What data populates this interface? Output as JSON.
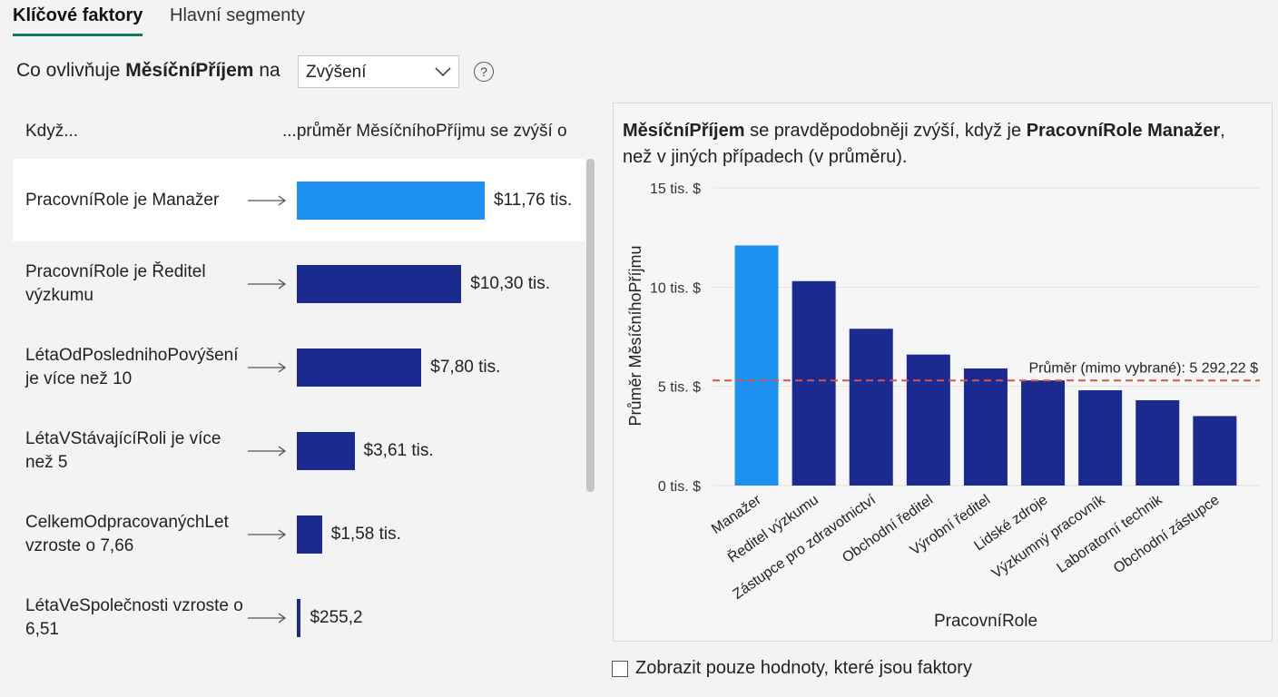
{
  "tabs": [
    "Klíčové faktory",
    "Hlavní segmenty"
  ],
  "question": {
    "prefix": "Co ovlivňuje",
    "field": "MěsíčníPříjem",
    "connector": "na",
    "dropdown": "Zvýšení",
    "help": "?"
  },
  "influencers": {
    "header_left": "Když...",
    "header_right": "...průměr MěsíčníhoPříjmu se zvýší o",
    "selected_index": 0,
    "color": "#1b2a8f",
    "selected_color": "#1e90f0",
    "items": [
      {
        "label": "PracovníRole je Manažer",
        "value": 11760,
        "value_label": "$11,76 tis."
      },
      {
        "label": "PracovníRole je Ředitel výzkumu",
        "value": 10300,
        "value_label": "$10,30 tis."
      },
      {
        "label": "LétaOdPoslednihoPovýšení je více než 10",
        "value": 7800,
        "value_label": "$7,80 tis."
      },
      {
        "label": "LétaVStávajícíRoli je více než 5",
        "value": 3610,
        "value_label": "$3,61 tis."
      },
      {
        "label": "CelkemOdpracovanýchLet vzroste o 7,66",
        "value": 1580,
        "value_label": "$1,58 tis."
      },
      {
        "label": "LétaVeSpolečnosti vzroste o 6,51",
        "value": 255.2,
        "value_label": "$255,2"
      }
    ]
  },
  "explanation": {
    "part1": "MěsíčníPříjem",
    "part2": " se pravděpodobněji zvýší, když je ",
    "part3": "PracovníRole Manažer",
    "part4": ", než v jiných případech (v průměru)."
  },
  "chart_data": {
    "type": "bar",
    "x_label": "PracovníRole",
    "y_label": "Průměr MěsíčníhoPříjmu",
    "categories": [
      "Manažer",
      "Ředitel výzkumu",
      "Zástupce pro zdravotnictví",
      "Obchodní ředitel",
      "Výrobní ředitel",
      "Lidské zdroje",
      "Výzkumný pracovník",
      "Laboratorní technik",
      "Obchodní zástupce"
    ],
    "values": [
      12100,
      10300,
      7900,
      6600,
      5900,
      5300,
      4800,
      4300,
      3500
    ],
    "colors": [
      "#1e90f0",
      "#1b2a8f",
      "#1b2a8f",
      "#1b2a8f",
      "#1b2a8f",
      "#1b2a8f",
      "#1b2a8f",
      "#1b2a8f",
      "#1b2a8f"
    ],
    "ylim": [
      0,
      15000
    ],
    "yticks": [
      {
        "value": 0,
        "label": "0 tis. $"
      },
      {
        "value": 5000,
        "label": "5 tis. $"
      },
      {
        "value": 10000,
        "label": "10 tis. $"
      },
      {
        "value": 15000,
        "label": "15 tis. $"
      }
    ],
    "grid": true,
    "reference_line": {
      "value": 5292.22,
      "label": "Průměr (mimo vybrané): 5 292,22 $",
      "color": "#d9534f"
    }
  },
  "checkbox": {
    "label": "Zobrazit pouze hodnoty, které jsou faktory"
  }
}
